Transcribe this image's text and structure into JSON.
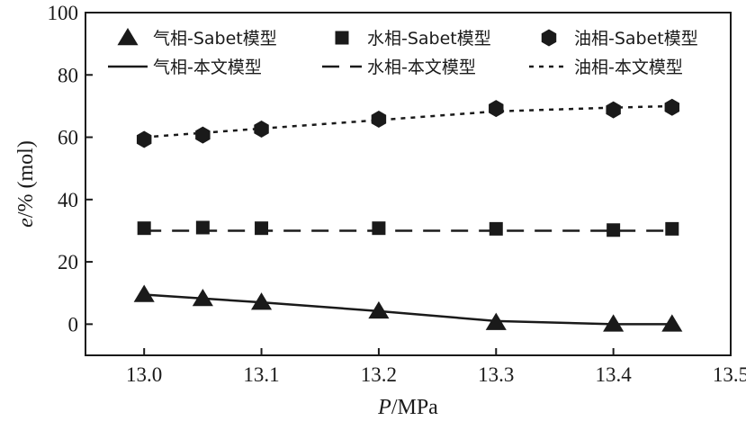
{
  "chart_data": {
    "type": "line",
    "title": "",
    "xlabel": {
      "italic": "P",
      "rest": "/MPa"
    },
    "ylabel": {
      "italic": "e",
      "rest": "/% (mol)"
    },
    "xlim": [
      12.95,
      13.5
    ],
    "ylim": [
      -10,
      100
    ],
    "xticks": [
      "13.0",
      "13.1",
      "13.2",
      "13.3",
      "13.4",
      "13.5"
    ],
    "xtick_values": [
      13.0,
      13.1,
      13.2,
      13.3,
      13.4,
      13.5
    ],
    "yticks": [
      "0",
      "20",
      "40",
      "60",
      "80",
      "100"
    ],
    "ytick_values": [
      0,
      20,
      40,
      60,
      80,
      100
    ],
    "grid": false,
    "legend_position": "top",
    "markers": [
      {
        "name": "气相-Sabet模型",
        "marker": "triangle",
        "x": [
          13.0,
          13.05,
          13.1,
          13.2,
          13.3,
          13.4,
          13.45
        ],
        "values": [
          9.5,
          8.2,
          7.0,
          4.2,
          0.5,
          0.0,
          0.0
        ]
      },
      {
        "name": "水相-Sabet模型",
        "marker": "square",
        "x": [
          13.0,
          13.05,
          13.1,
          13.2,
          13.3,
          13.4,
          13.45
        ],
        "values": [
          30.8,
          31.0,
          30.8,
          30.8,
          30.6,
          30.2,
          30.6
        ]
      },
      {
        "name": "油相-Sabet模型",
        "marker": "hexagon",
        "x": [
          13.0,
          13.05,
          13.1,
          13.2,
          13.3,
          13.4,
          13.45
        ],
        "values": [
          59.3,
          60.7,
          62.6,
          65.8,
          69.2,
          68.8,
          69.6
        ]
      }
    ],
    "lines": [
      {
        "name": "气相-本文模型",
        "style": "solid",
        "x": [
          13.0,
          13.1,
          13.2,
          13.3,
          13.4,
          13.45
        ],
        "values": [
          9.5,
          7.0,
          4.2,
          1.0,
          0.0,
          0.0
        ]
      },
      {
        "name": "水相-本文模型",
        "style": "dashed",
        "x": [
          13.0,
          13.45
        ],
        "values": [
          30.0,
          30.0
        ]
      },
      {
        "name": "油相-本文模型",
        "style": "dotted",
        "x": [
          13.0,
          13.1,
          13.2,
          13.3,
          13.4,
          13.45
        ],
        "values": [
          60.0,
          62.8,
          65.5,
          68.3,
          69.5,
          70.0
        ]
      }
    ]
  }
}
